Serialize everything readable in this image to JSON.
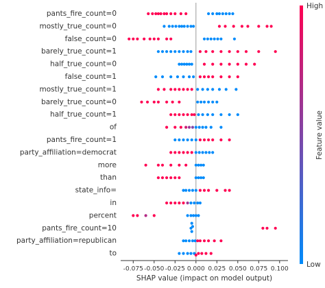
{
  "chart_data": {
    "type": "beeswarm",
    "xlabel": "SHAP value (impact on model output)",
    "colorbar_label": "Feature value",
    "colorbar_high": "High",
    "colorbar_low": "Low",
    "low_color": "#008bfb",
    "high_color": "#ff0052",
    "xlim": [
      -0.09,
      0.11
    ],
    "xticks": [
      -0.075,
      {
        "value": -0.05,
        "label": "-0.050"
      },
      -0.025,
      {
        "value": 0,
        "label": "0.000"
      },
      0.025,
      {
        "value": 0.05,
        "label": "0.050"
      },
      0.075,
      {
        "value": 0.1,
        "label": "0.100"
      }
    ],
    "features": [
      {
        "name": "pants_fire_count=0",
        "shap": [
          -0.057,
          -0.052,
          -0.048,
          -0.045,
          -0.042,
          -0.038,
          -0.035,
          -0.03,
          -0.025,
          -0.018,
          -0.012,
          0.015,
          0.02,
          0.025,
          0.028,
          0.032,
          0.036,
          0.04,
          0.044
        ],
        "feature_value": [
          1,
          1,
          1,
          1,
          1,
          1,
          1,
          1,
          1,
          1,
          1,
          0,
          0,
          0,
          0,
          0,
          0,
          0,
          0
        ]
      },
      {
        "name": "mostly_true_count=0",
        "shap": [
          -0.038,
          -0.032,
          -0.028,
          -0.024,
          -0.02,
          -0.017,
          -0.014,
          -0.01,
          -0.006,
          -0.003,
          0.028,
          0.035,
          0.045,
          0.055,
          0.062,
          0.075,
          0.085,
          0.09
        ],
        "feature_value": [
          0,
          0,
          0,
          0,
          0,
          0,
          0,
          0,
          0,
          0,
          1,
          1,
          1,
          1,
          1,
          1,
          1,
          1
        ]
      },
      {
        "name": "false_count=0",
        "shap": [
          -0.08,
          -0.075,
          -0.07,
          -0.062,
          -0.055,
          -0.05,
          -0.045,
          -0.035,
          -0.03,
          0.01,
          0.014,
          0.018,
          0.022,
          0.026,
          0.03,
          0.046
        ],
        "feature_value": [
          1,
          1,
          1,
          1,
          1,
          1,
          1,
          1,
          1,
          0,
          0,
          0,
          0,
          0,
          0,
          0
        ]
      },
      {
        "name": "barely_true_count=1",
        "shap": [
          -0.045,
          -0.04,
          -0.035,
          -0.03,
          -0.025,
          -0.02,
          -0.015,
          -0.01,
          -0.006,
          0.005,
          0.012,
          0.02,
          0.03,
          0.04,
          0.05,
          0.06,
          0.075,
          0.095
        ],
        "feature_value": [
          0,
          0,
          0,
          0,
          0,
          0,
          0,
          0,
          0,
          1,
          1,
          1,
          1,
          1,
          1,
          1,
          1,
          1
        ]
      },
      {
        "name": "half_true_count=0",
        "shap": [
          -0.02,
          -0.017,
          -0.014,
          -0.011,
          -0.008,
          -0.005,
          0.01,
          0.02,
          0.03,
          0.04,
          0.05,
          0.06,
          0.07
        ],
        "feature_value": [
          0,
          0,
          0,
          0,
          0,
          0,
          1,
          1,
          1,
          1,
          1,
          1,
          1
        ]
      },
      {
        "name": "false_count=1",
        "shap": [
          -0.048,
          -0.04,
          -0.03,
          -0.022,
          -0.015,
          -0.008,
          -0.003,
          0.005,
          0.01,
          0.015,
          0.02,
          0.03,
          0.04,
          0.05
        ],
        "feature_value": [
          0,
          0,
          0,
          0,
          0,
          0,
          0,
          1,
          1,
          1,
          1,
          1,
          1,
          1
        ]
      },
      {
        "name": "mostly_true_count=1",
        "shap": [
          -0.045,
          -0.038,
          -0.03,
          -0.025,
          -0.02,
          -0.015,
          -0.01,
          -0.005,
          0.002,
          0.008,
          0.014,
          0.02,
          0.028,
          0.036,
          0.048
        ],
        "feature_value": [
          1,
          1,
          1,
          1,
          1,
          1,
          1,
          1,
          0,
          0,
          0,
          0,
          0,
          0,
          0
        ]
      },
      {
        "name": "barely_true_count=0",
        "shap": [
          -0.065,
          -0.058,
          -0.05,
          -0.045,
          -0.035,
          -0.028,
          -0.02,
          0.002,
          0.006,
          0.01,
          0.015,
          0.02,
          0.025
        ],
        "feature_value": [
          1,
          1,
          1,
          1,
          1,
          1,
          1,
          0,
          0,
          0,
          0,
          0,
          0
        ]
      },
      {
        "name": "half_true_count=1",
        "shap": [
          -0.03,
          -0.025,
          -0.02,
          -0.015,
          -0.01,
          -0.005,
          -0.002,
          0.003,
          0.008,
          0.014,
          0.02,
          0.03,
          0.04,
          0.05
        ],
        "feature_value": [
          1,
          1,
          1,
          1,
          1,
          1,
          1,
          0,
          0,
          0,
          0,
          0,
          0,
          0
        ]
      },
      {
        "name": "of",
        "shap": [
          -0.035,
          -0.025,
          -0.018,
          -0.012,
          -0.008,
          -0.004,
          0.0,
          0.004,
          0.008,
          0.012,
          0.018,
          0.03
        ],
        "feature_value": [
          1,
          1,
          1,
          0.8,
          0.6,
          0.5,
          0,
          0,
          0,
          0,
          0,
          0
        ]
      },
      {
        "name": "pants_fire_count=1",
        "shap": [
          -0.025,
          -0.02,
          -0.015,
          -0.01,
          -0.005,
          0.0,
          0.005,
          0.01,
          0.015,
          0.02,
          0.03,
          0.04
        ],
        "feature_value": [
          0,
          0,
          0,
          0,
          0,
          0,
          1,
          1,
          1,
          1,
          1,
          1
        ]
      },
      {
        "name": "party_affiliation=democrat",
        "shap": [
          -0.03,
          -0.025,
          -0.02,
          -0.015,
          -0.01,
          -0.005,
          0.0,
          0.004,
          0.008,
          0.012,
          0.016,
          0.02
        ],
        "feature_value": [
          1,
          1,
          1,
          1,
          1,
          1,
          0,
          0,
          0,
          0,
          0,
          0
        ]
      },
      {
        "name": "more",
        "shap": [
          -0.06,
          -0.045,
          -0.04,
          -0.03,
          -0.02,
          -0.012,
          0.0,
          0.003,
          0.006,
          0.009
        ],
        "feature_value": [
          1,
          1,
          1,
          1,
          1,
          1,
          0,
          0,
          0,
          0
        ]
      },
      {
        "name": "than",
        "shap": [
          -0.045,
          -0.04,
          -0.035,
          -0.03,
          -0.025,
          -0.02,
          0.0,
          0.003,
          0.006,
          0.009
        ],
        "feature_value": [
          1,
          1,
          1,
          1,
          1,
          1,
          0,
          0,
          0,
          0
        ]
      },
      {
        "name": "state_info=",
        "shap": [
          -0.015,
          -0.012,
          -0.008,
          -0.004,
          0.0,
          0.005,
          0.01,
          0.015,
          0.025,
          0.035,
          0.04
        ],
        "feature_value": [
          0,
          0,
          0,
          0,
          0,
          1,
          1,
          1,
          1,
          1,
          1
        ]
      },
      {
        "name": "in",
        "shap": [
          -0.035,
          -0.03,
          -0.025,
          -0.02,
          -0.015,
          -0.01,
          -0.006,
          -0.002,
          0.002,
          0.005
        ],
        "feature_value": [
          1,
          1,
          1,
          1,
          1,
          0.6,
          0,
          0,
          0,
          0
        ]
      },
      {
        "name": "percent",
        "shap": [
          -0.075,
          -0.07,
          -0.06,
          -0.05,
          -0.01,
          -0.006,
          -0.003,
          0.0,
          0.003
        ],
        "feature_value": [
          1,
          1,
          0.7,
          1,
          0,
          0,
          0,
          0,
          0
        ]
      },
      {
        "name": "pants_fire_count=10",
        "shap": [
          -0.006,
          -0.005,
          -0.004,
          -0.005,
          0.08,
          0.085,
          0.095
        ],
        "feature_value": [
          0,
          0,
          0,
          0,
          1,
          1,
          1
        ]
      },
      {
        "name": "party_affiliation=republican",
        "shap": [
          -0.015,
          -0.012,
          -0.008,
          -0.004,
          -0.001,
          0.002,
          0.005,
          0.01,
          0.015,
          0.022,
          0.03
        ],
        "feature_value": [
          0,
          0,
          0,
          0,
          0,
          1,
          1,
          1,
          1,
          1,
          1
        ]
      },
      {
        "name": "to",
        "shap": [
          -0.02,
          -0.015,
          -0.01,
          -0.006,
          -0.002,
          0.0,
          0.003,
          0.007,
          0.012,
          0.018
        ],
        "feature_value": [
          0,
          0,
          0,
          0,
          0,
          1,
          1,
          1,
          1,
          1
        ]
      }
    ]
  }
}
